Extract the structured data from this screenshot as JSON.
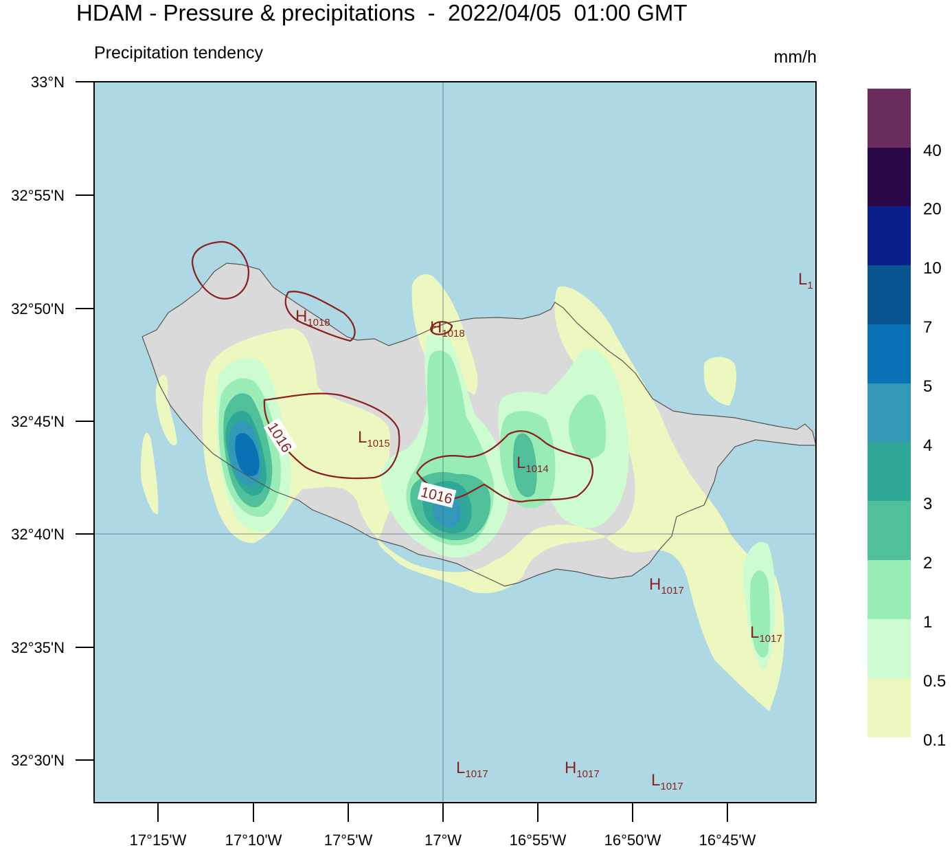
{
  "title": "HDAM - Pressure & precipitations  -  2022/04/05  01:00 GMT",
  "subtitle": "Precipitation tendency",
  "units": "mm/h",
  "lat_labels": [
    "33°N",
    "32°55'N",
    "32°50'N",
    "32°45'N",
    "32°40'N",
    "32°35'N",
    "32°30'N"
  ],
  "lon_labels": [
    "17°15'W",
    "17°10'W",
    "17°5'W",
    "17°W",
    "16°55'W",
    "16°50'W",
    "16°45'W"
  ],
  "colorbar": {
    "labels": [
      "0.1",
      "0.5",
      "1",
      "2",
      "3",
      "4",
      "5",
      "7",
      "10",
      "20",
      "40"
    ],
    "colors": [
      "#edf8c0",
      "#cdfcd0",
      "#99ecb4",
      "#50c09a",
      "#2fa898",
      "#3398b8",
      "#0872b4",
      "#07548e",
      "#0a1e8c",
      "#2a0848",
      "#6a2c5c"
    ]
  },
  "colors": {
    "sea": "#add8e4",
    "land": "#dadada",
    "isobar": "#8b2222"
  },
  "isobar_labels": [
    "1016",
    "1016"
  ],
  "pressure_centers": [
    {
      "id": "h1018a",
      "letter": "H",
      "value": "1018"
    },
    {
      "id": "h1018b",
      "letter": "H",
      "value": "1018"
    },
    {
      "id": "l1015",
      "letter": "L",
      "value": "1015"
    },
    {
      "id": "l1014",
      "letter": "L",
      "value": "1014"
    },
    {
      "id": "h1017a",
      "letter": "H",
      "value": "1017"
    },
    {
      "id": "l1017a",
      "letter": "L",
      "value": "1017"
    },
    {
      "id": "l1017b",
      "letter": "L",
      "value": "1017"
    },
    {
      "id": "h1017b",
      "letter": "H",
      "value": "1017"
    },
    {
      "id": "l1017c",
      "letter": "L",
      "value": "1017"
    },
    {
      "id": "l1edge",
      "letter": "L",
      "value": "1"
    }
  ]
}
